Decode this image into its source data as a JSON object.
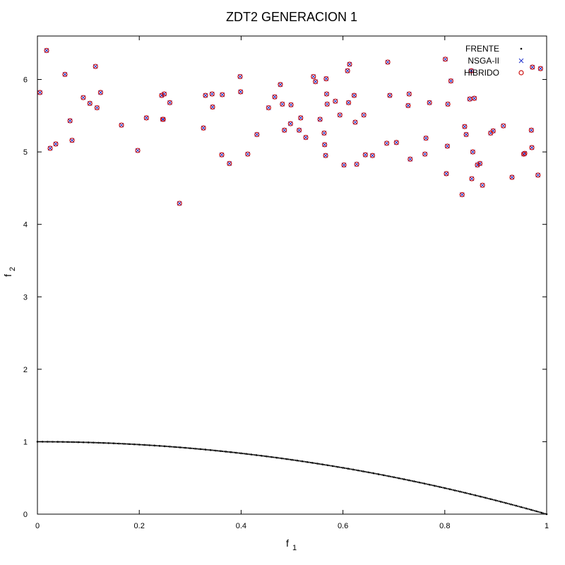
{
  "chart_data": {
    "type": "scatter",
    "title": "ZDT2 GENERACION 1",
    "xlabel": {
      "main": "f",
      "sub": "1"
    },
    "ylabel": {
      "main": "f",
      "sub": "2"
    },
    "xlim": [
      0,
      1
    ],
    "ylim": [
      0,
      6.6
    ],
    "x_ticks": [
      0,
      0.2,
      0.4,
      0.6,
      0.8,
      1
    ],
    "x_tick_labels": [
      "0",
      "0.2",
      "0.4",
      "0.6",
      "0.8",
      "1"
    ],
    "y_ticks": [
      0,
      1,
      2,
      3,
      4,
      5,
      6
    ],
    "y_tick_labels": [
      "0",
      "1",
      "2",
      "3",
      "4",
      "5",
      "6"
    ],
    "grid": false,
    "legend_position": "top-right",
    "colors": {
      "frente": "#000000",
      "nsga": "#2233cc",
      "hibrido": "#cc1111"
    },
    "series": [
      {
        "name": "FRENTE",
        "marker": "dot",
        "x": [
          0,
          0.01,
          0.02,
          0.03,
          0.04,
          0.05,
          0.06,
          0.07,
          0.08,
          0.09,
          0.1,
          0.11,
          0.12,
          0.13,
          0.14,
          0.15,
          0.16,
          0.17,
          0.18,
          0.19,
          0.2,
          0.21,
          0.22,
          0.23,
          0.24,
          0.25,
          0.26,
          0.27,
          0.28,
          0.29,
          0.3,
          0.31,
          0.32,
          0.33,
          0.34,
          0.35,
          0.36,
          0.37,
          0.38,
          0.39,
          0.4,
          0.41,
          0.42,
          0.43,
          0.44,
          0.45,
          0.46,
          0.47,
          0.48,
          0.49,
          0.5,
          0.51,
          0.52,
          0.53,
          0.54,
          0.55,
          0.56,
          0.57,
          0.58,
          0.59,
          0.6,
          0.61,
          0.62,
          0.63,
          0.64,
          0.65,
          0.66,
          0.67,
          0.68,
          0.69,
          0.7,
          0.71,
          0.72,
          0.73,
          0.74,
          0.75,
          0.76,
          0.77,
          0.78,
          0.79,
          0.8,
          0.81,
          0.82,
          0.83,
          0.84,
          0.85,
          0.86,
          0.87,
          0.88,
          0.89,
          0.9,
          0.91,
          0.92,
          0.93,
          0.94,
          0.95,
          0.96,
          0.97,
          0.98,
          0.99,
          1
        ],
        "y": [
          1,
          0.9999,
          0.9996,
          0.9991,
          0.9984,
          0.9975,
          0.9964,
          0.9951,
          0.9936,
          0.9919,
          0.99,
          0.9879,
          0.9856,
          0.9831,
          0.9804,
          0.9775,
          0.9744,
          0.9711,
          0.9676,
          0.9639,
          0.96,
          0.9559,
          0.9516,
          0.9471,
          0.9424,
          0.9375,
          0.9324,
          0.9271,
          0.9216,
          0.9159,
          0.91,
          0.9039,
          0.8976,
          0.8911,
          0.8844,
          0.8775,
          0.8704,
          0.8631,
          0.8556,
          0.8479,
          0.84,
          0.8319,
          0.8236,
          0.8151,
          0.8064,
          0.7975,
          0.7884,
          0.7791,
          0.7696,
          0.7599,
          0.75,
          0.7399,
          0.7296,
          0.7191,
          0.7084,
          0.6975,
          0.6864,
          0.6751,
          0.6636,
          0.6519,
          0.64,
          0.6279,
          0.6156,
          0.6031,
          0.5904,
          0.5775,
          0.5644,
          0.5511,
          0.5376,
          0.5239,
          0.51,
          0.4959,
          0.4816,
          0.4671,
          0.4524,
          0.4375,
          0.4224,
          0.4071,
          0.3916,
          0.3759,
          0.36,
          0.3439,
          0.3276,
          0.3111,
          0.2944,
          0.2775,
          0.2604,
          0.2431,
          0.2256,
          0.2079,
          0.19,
          0.1719,
          0.1536,
          0.1351,
          0.1164,
          0.0975,
          0.0784,
          0.0591,
          0.0396,
          0.0199,
          0
        ]
      },
      {
        "name": "NSGA-II",
        "marker": "cross",
        "x": [
          0.005,
          0.018,
          0.025,
          0.036,
          0.054,
          0.064,
          0.068,
          0.09,
          0.103,
          0.114,
          0.117,
          0.124,
          0.165,
          0.197,
          0.214,
          0.244,
          0.246,
          0.247,
          0.249,
          0.26,
          0.279,
          0.326,
          0.33,
          0.343,
          0.344,
          0.362,
          0.363,
          0.377,
          0.398,
          0.399,
          0.413,
          0.431,
          0.454,
          0.466,
          0.477,
          0.481,
          0.485,
          0.497,
          0.498,
          0.514,
          0.517,
          0.527,
          0.542,
          0.546,
          0.555,
          0.563,
          0.564,
          0.566,
          0.567,
          0.568,
          0.569,
          0.585,
          0.594,
          0.602,
          0.609,
          0.611,
          0.613,
          0.622,
          0.624,
          0.627,
          0.641,
          0.644,
          0.658,
          0.686,
          0.688,
          0.692,
          0.705,
          0.728,
          0.73,
          0.732,
          0.761,
          0.763,
          0.77,
          0.801,
          0.803,
          0.805,
          0.806,
          0.812,
          0.834,
          0.839,
          0.842,
          0.849,
          0.852,
          0.853,
          0.855,
          0.858,
          0.864,
          0.869,
          0.874,
          0.89,
          0.895,
          0.915,
          0.932,
          0.955,
          0.957,
          0.97,
          0.971,
          0.972,
          0.983,
          0.988
        ],
        "y": [
          5.82,
          6.4,
          5.05,
          5.11,
          6.07,
          5.43,
          5.16,
          5.75,
          5.67,
          6.18,
          5.61,
          5.82,
          5.37,
          5.02,
          5.47,
          5.78,
          5.45,
          5.45,
          5.8,
          5.68,
          4.29,
          5.33,
          5.78,
          5.8,
          5.62,
          4.96,
          5.79,
          4.84,
          6.04,
          5.83,
          4.97,
          5.24,
          5.61,
          5.76,
          5.93,
          5.66,
          5.3,
          5.39,
          5.65,
          5.3,
          5.47,
          5.2,
          6.04,
          5.97,
          5.45,
          5.26,
          5.1,
          4.95,
          6.01,
          5.8,
          5.66,
          5.7,
          5.51,
          4.82,
          6.12,
          5.68,
          6.21,
          5.78,
          5.41,
          4.83,
          5.51,
          4.96,
          4.95,
          5.12,
          6.24,
          5.78,
          5.13,
          5.64,
          5.8,
          4.9,
          4.97,
          5.19,
          5.68,
          6.28,
          4.7,
          5.08,
          5.66,
          5.98,
          4.41,
          5.35,
          5.24,
          5.73,
          6.12,
          4.63,
          5.0,
          5.74,
          4.82,
          4.84,
          4.54,
          5.26,
          5.29,
          5.36,
          4.65,
          4.97,
          4.98,
          5.3,
          5.06,
          6.17,
          4.68,
          6.15
        ]
      },
      {
        "name": "HIBRIDO",
        "marker": "circle",
        "x": [
          0.005,
          0.018,
          0.025,
          0.036,
          0.054,
          0.064,
          0.068,
          0.09,
          0.103,
          0.114,
          0.117,
          0.124,
          0.165,
          0.197,
          0.214,
          0.244,
          0.246,
          0.247,
          0.249,
          0.26,
          0.279,
          0.326,
          0.33,
          0.343,
          0.344,
          0.362,
          0.363,
          0.377,
          0.398,
          0.399,
          0.413,
          0.431,
          0.454,
          0.466,
          0.477,
          0.481,
          0.485,
          0.497,
          0.498,
          0.514,
          0.517,
          0.527,
          0.542,
          0.546,
          0.555,
          0.563,
          0.564,
          0.566,
          0.567,
          0.568,
          0.569,
          0.585,
          0.594,
          0.602,
          0.609,
          0.611,
          0.613,
          0.622,
          0.624,
          0.627,
          0.641,
          0.644,
          0.658,
          0.686,
          0.688,
          0.692,
          0.705,
          0.728,
          0.73,
          0.732,
          0.761,
          0.763,
          0.77,
          0.801,
          0.803,
          0.805,
          0.806,
          0.812,
          0.834,
          0.839,
          0.842,
          0.849,
          0.852,
          0.853,
          0.855,
          0.858,
          0.864,
          0.869,
          0.874,
          0.89,
          0.895,
          0.915,
          0.932,
          0.955,
          0.957,
          0.97,
          0.971,
          0.972,
          0.983,
          0.988
        ],
        "y": [
          5.82,
          6.4,
          5.05,
          5.11,
          6.07,
          5.43,
          5.16,
          5.75,
          5.67,
          6.18,
          5.61,
          5.82,
          5.37,
          5.02,
          5.47,
          5.78,
          5.45,
          5.45,
          5.8,
          5.68,
          4.29,
          5.33,
          5.78,
          5.8,
          5.62,
          4.96,
          5.79,
          4.84,
          6.04,
          5.83,
          4.97,
          5.24,
          5.61,
          5.76,
          5.93,
          5.66,
          5.3,
          5.39,
          5.65,
          5.3,
          5.47,
          5.2,
          6.04,
          5.97,
          5.45,
          5.26,
          5.1,
          4.95,
          6.01,
          5.8,
          5.66,
          5.7,
          5.51,
          4.82,
          6.12,
          5.68,
          6.21,
          5.78,
          5.41,
          4.83,
          5.51,
          4.96,
          4.95,
          5.12,
          6.24,
          5.78,
          5.13,
          5.64,
          5.8,
          4.9,
          4.97,
          5.19,
          5.68,
          6.28,
          4.7,
          5.08,
          5.66,
          5.98,
          4.41,
          5.35,
          5.24,
          5.73,
          6.12,
          4.63,
          5.0,
          5.74,
          4.82,
          4.84,
          4.54,
          5.26,
          5.29,
          5.36,
          4.65,
          4.97,
          4.98,
          5.3,
          5.06,
          6.17,
          4.68,
          6.15
        ]
      }
    ]
  }
}
